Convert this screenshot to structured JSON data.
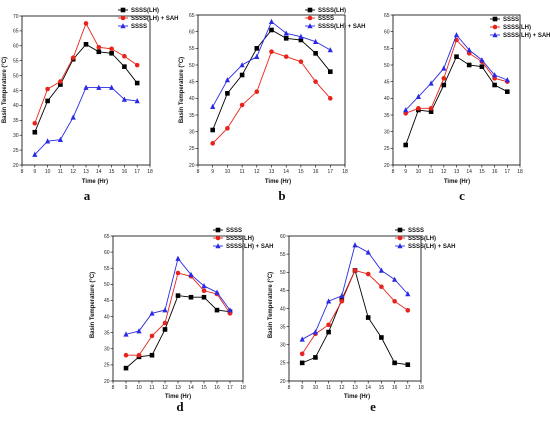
{
  "colors": {
    "black": "#000000",
    "red": "#e8231b",
    "blue": "#2a2ae6"
  },
  "chart_data": [
    {
      "type": "line",
      "panel": "a",
      "xlabel": "Time (Hr)",
      "ylabel": "Basin Temperature (°C)",
      "xlim": [
        8,
        18
      ],
      "ylim": [
        20,
        70
      ],
      "xticks": [
        8,
        9,
        10,
        11,
        12,
        13,
        14,
        15,
        16,
        17,
        18
      ],
      "yticks": [
        20,
        25,
        30,
        35,
        40,
        45,
        50,
        55,
        60,
        65,
        70
      ],
      "x": [
        9,
        10,
        11,
        12,
        13,
        14,
        15,
        16,
        17
      ],
      "legend_position": "top-right",
      "series": [
        {
          "name": "SSSS(LH)",
          "color": "#000000",
          "marker": "square",
          "values": [
            31,
            41.5,
            47,
            55.5,
            60.5,
            58,
            57.5,
            53,
            47.5
          ]
        },
        {
          "name": "SSSS(LH) + SAH",
          "color": "#e8231b",
          "marker": "circle",
          "values": [
            34,
            45.5,
            48,
            56,
            67.5,
            59.5,
            59,
            56.5,
            53.5
          ]
        },
        {
          "name": "SSSS",
          "color": "#2a2ae6",
          "marker": "triangle",
          "values": [
            23.5,
            28,
            28.5,
            36,
            46,
            46,
            46,
            42,
            41.5
          ]
        }
      ]
    },
    {
      "type": "line",
      "panel": "b",
      "xlabel": "Time (Hr)",
      "ylabel": "Basin Temperature (°C)",
      "xlim": [
        8,
        18
      ],
      "ylim": [
        20,
        65
      ],
      "xticks": [
        8,
        9,
        10,
        11,
        12,
        13,
        14,
        15,
        16,
        17,
        18
      ],
      "yticks": [
        20,
        25,
        30,
        35,
        40,
        45,
        50,
        55,
        60,
        65
      ],
      "x": [
        9,
        10,
        11,
        12,
        13,
        14,
        15,
        16,
        17
      ],
      "legend_position": "top-right",
      "series": [
        {
          "name": "SSSS(LH)",
          "color": "#000000",
          "marker": "square",
          "values": [
            30.5,
            41.5,
            47,
            55,
            60.5,
            58,
            57.5,
            53.5,
            48
          ]
        },
        {
          "name": "SSSS",
          "color": "#e8231b",
          "marker": "circle",
          "values": [
            26.5,
            31,
            38,
            42,
            54,
            52.5,
            51,
            45,
            40
          ]
        },
        {
          "name": "SSSS(LH) + SAH",
          "color": "#2a2ae6",
          "marker": "triangle",
          "values": [
            37.5,
            45.5,
            50,
            52.5,
            63,
            59.5,
            58.5,
            57,
            54.5
          ]
        }
      ]
    },
    {
      "type": "line",
      "panel": "c",
      "xlabel": "Time (Hr)",
      "ylabel": "",
      "xlim": [
        8,
        18
      ],
      "ylim": [
        20,
        65
      ],
      "xticks": [
        8,
        9,
        10,
        11,
        12,
        13,
        14,
        15,
        16,
        17,
        18
      ],
      "yticks": [
        20,
        25,
        30,
        35,
        40,
        45,
        50,
        55,
        60,
        65
      ],
      "x": [
        9,
        10,
        11,
        12,
        13,
        14,
        15,
        16,
        17
      ],
      "legend_position": "top-right",
      "series": [
        {
          "name": "SSSS",
          "color": "#000000",
          "marker": "square",
          "values": [
            26,
            36.5,
            36,
            44,
            52.5,
            50,
            49.5,
            44,
            42
          ]
        },
        {
          "name": "SSSS(LH)",
          "color": "#e8231b",
          "marker": "circle",
          "values": [
            35.5,
            37,
            37,
            46,
            57.5,
            53.5,
            51,
            46,
            45
          ]
        },
        {
          "name": "SSSS(LH) + SAH",
          "color": "#2a2ae6",
          "marker": "triangle",
          "values": [
            36.5,
            40.5,
            44.5,
            49,
            59,
            54.5,
            51.5,
            47,
            45.5
          ]
        }
      ]
    },
    {
      "type": "line",
      "panel": "d",
      "xlabel": "Time (Hr)",
      "ylabel": "Basin Temperature (°C)",
      "xlim": [
        8,
        18
      ],
      "ylim": [
        20,
        65
      ],
      "xticks": [
        8,
        9,
        10,
        11,
        12,
        13,
        14,
        15,
        16,
        17,
        18
      ],
      "yticks": [
        20,
        25,
        30,
        35,
        40,
        45,
        50,
        55,
        60,
        65
      ],
      "x": [
        9,
        10,
        11,
        12,
        13,
        14,
        15,
        16,
        17
      ],
      "legend_position": "top-right",
      "series": [
        {
          "name": "SSSS",
          "color": "#000000",
          "marker": "square",
          "values": [
            24,
            27.5,
            28,
            36,
            46.5,
            46,
            46,
            42,
            41.5
          ]
        },
        {
          "name": "SSSS(LH)",
          "color": "#e8231b",
          "marker": "circle",
          "values": [
            28,
            28,
            34,
            38,
            53.5,
            52.5,
            48,
            47,
            41
          ]
        },
        {
          "name": "SSSS(LH) + SAH",
          "color": "#2a2ae6",
          "marker": "triangle",
          "values": [
            34.5,
            35.5,
            41,
            42,
            58,
            53,
            49.5,
            47.5,
            42
          ]
        }
      ]
    },
    {
      "type": "line",
      "panel": "e",
      "xlabel": "Time (Hr)",
      "ylabel": "Basin Temperature (°C)",
      "xlim": [
        8,
        18
      ],
      "ylim": [
        20,
        60
      ],
      "xticks": [
        8,
        9,
        10,
        11,
        12,
        13,
        14,
        15,
        16,
        17,
        18
      ],
      "yticks": [
        20,
        25,
        30,
        35,
        40,
        45,
        50,
        55,
        60
      ],
      "x": [
        9,
        10,
        11,
        12,
        13,
        14,
        15,
        16,
        17
      ],
      "legend_position": "top-right",
      "series": [
        {
          "name": "SSSS",
          "color": "#000000",
          "marker": "square",
          "values": [
            25,
            26.5,
            33.5,
            42.5,
            50.5,
            37.5,
            32,
            25,
            24.5
          ]
        },
        {
          "name": "SSSS(LH)",
          "color": "#e8231b",
          "marker": "circle",
          "values": [
            27.5,
            33,
            35.5,
            42,
            50.5,
            49.5,
            46,
            42,
            39.5
          ]
        },
        {
          "name": "SSSS(LH) + SAH",
          "color": "#2a2ae6",
          "marker": "triangle",
          "values": [
            31.5,
            33.5,
            42,
            43.5,
            57.5,
            55.5,
            50.5,
            48,
            44
          ]
        }
      ]
    }
  ],
  "panel_labels": [
    "a",
    "b",
    "c",
    "d",
    "e"
  ]
}
